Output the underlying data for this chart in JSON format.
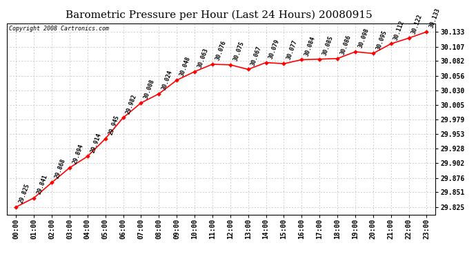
{
  "title": "Barometric Pressure per Hour (Last 24 Hours) 20080915",
  "copyright": "Copyright 2008 Cartronics.com",
  "hours": [
    "00:00",
    "01:00",
    "02:00",
    "03:00",
    "04:00",
    "05:00",
    "06:00",
    "07:00",
    "08:00",
    "09:00",
    "10:00",
    "11:00",
    "12:00",
    "13:00",
    "14:00",
    "15:00",
    "16:00",
    "17:00",
    "18:00",
    "19:00",
    "20:00",
    "21:00",
    "22:00",
    "23:00"
  ],
  "values": [
    29.825,
    29.841,
    29.868,
    29.894,
    29.914,
    29.945,
    29.982,
    30.008,
    30.024,
    30.048,
    30.063,
    30.076,
    30.075,
    30.067,
    30.079,
    30.077,
    30.084,
    30.085,
    30.086,
    30.098,
    30.095,
    30.112,
    30.122,
    30.133
  ],
  "line_color": "#ff0000",
  "marker_color": "#ff0000",
  "marker_size": 3,
  "bg_color": "#ffffff",
  "grid_color": "#bbbbbb",
  "yticks": [
    29.825,
    29.851,
    29.876,
    29.902,
    29.928,
    29.953,
    29.979,
    30.005,
    30.03,
    30.056,
    30.082,
    30.107,
    30.133
  ],
  "ylim_min": 29.811,
  "ylim_max": 30.148,
  "title_fontsize": 11,
  "label_fontsize": 7,
  "annotation_fontsize": 6,
  "annotation_rotation": 70
}
